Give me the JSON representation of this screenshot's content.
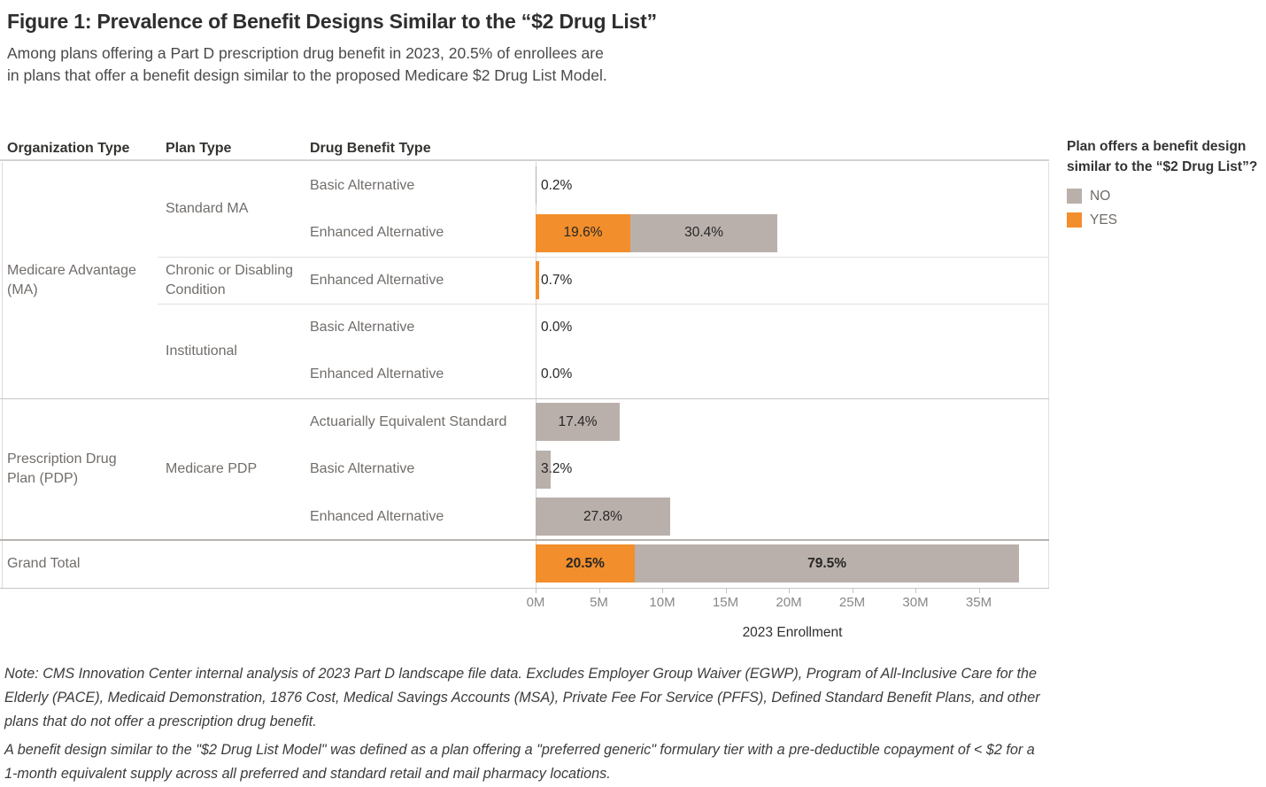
{
  "figure": {
    "title": "Figure 1: Prevalence of Benefit Designs Similar to the “$2 Drug List”",
    "subtitle": "Among plans offering a Part D prescription drug benefit in 2023, 20.5% of enrollees are\nin plans that offer a benefit design similar to the proposed Medicare $2 Drug List Model."
  },
  "table_headers": {
    "organization": "Organization Type",
    "plan": "Plan Type",
    "benefit": "Drug Benefit Type"
  },
  "legend": {
    "title": "Plan offers a benefit design\nsimilar to the “$2 Drug List”?",
    "items": [
      {
        "label": "NO",
        "color": "#bab0ab"
      },
      {
        "label": "YES",
        "color": "#f28e2b"
      }
    ]
  },
  "colors": {
    "yes": "#f28e2b",
    "no": "#bab0ab"
  },
  "chart_data": {
    "type": "bar",
    "orientation": "horizontal_stacked",
    "title": "Figure 1: Prevalence of Benefit Designs Similar to the “$2 Drug List”",
    "xlabel": "2023 Enrollment",
    "x_ticks": [
      "0M",
      "5M",
      "10M",
      "15M",
      "20M",
      "25M",
      "30M",
      "35M"
    ],
    "x_range_M": [
      0,
      40.5
    ],
    "total_enrollment_M": 38.2,
    "value_units": "percent of total 2023 Part D enrollment",
    "grid": false,
    "legend_position": "right",
    "series": [
      {
        "name": "YES",
        "color": "#f28e2b"
      },
      {
        "name": "NO",
        "color": "#bab0ab"
      }
    ],
    "rows": [
      {
        "organization": "Medicare Advantage (MA)",
        "plan": "Standard MA",
        "benefit": "Basic Alternative",
        "segments": [
          {
            "series": "NO",
            "pct": 0.2
          }
        ],
        "label": "0.2%"
      },
      {
        "organization": "Medicare Advantage (MA)",
        "plan": "Standard MA",
        "benefit": "Enhanced Alternative",
        "segments": [
          {
            "series": "YES",
            "pct": 19.6,
            "label": "19.6%"
          },
          {
            "series": "NO",
            "pct": 30.4,
            "label": "30.4%"
          }
        ]
      },
      {
        "organization": "Medicare Advantage (MA)",
        "plan": "Chronic or Disabling Condition",
        "benefit": "Enhanced Alternative",
        "segments": [
          {
            "series": "YES",
            "pct": 0.7
          }
        ],
        "label": "0.7%"
      },
      {
        "organization": "Medicare Advantage (MA)",
        "plan": "Institutional",
        "benefit": "Basic Alternative",
        "segments": [],
        "label": "0.0%"
      },
      {
        "organization": "Medicare Advantage (MA)",
        "plan": "Institutional",
        "benefit": "Enhanced Alternative",
        "segments": [],
        "label": "0.0%"
      },
      {
        "organization": "Prescription Drug Plan (PDP)",
        "plan": "Medicare PDP",
        "benefit": "Actuarially Equivalent Standard",
        "segments": [
          {
            "series": "NO",
            "pct": 17.4,
            "label": "17.4%"
          }
        ]
      },
      {
        "organization": "Prescription Drug Plan (PDP)",
        "plan": "Medicare PDP",
        "benefit": "Basic Alternative",
        "segments": [
          {
            "series": "NO",
            "pct": 3.2
          }
        ],
        "label": "3.2%"
      },
      {
        "organization": "Prescription Drug Plan (PDP)",
        "plan": "Medicare PDP",
        "benefit": "Enhanced Alternative",
        "segments": [
          {
            "series": "NO",
            "pct": 27.8,
            "label": "27.8%"
          }
        ]
      }
    ],
    "grand_total": {
      "label": "Grand Total",
      "segments": [
        {
          "series": "YES",
          "pct": 20.5,
          "label": "20.5%"
        },
        {
          "series": "NO",
          "pct": 79.5,
          "label": "79.5%"
        }
      ]
    }
  },
  "notes": [
    "Note: CMS Innovation Center internal analysis of 2023 Part D landscape file data. Excludes Employer Group Waiver (EGWP), Program of All-Inclusive Care for the Elderly (PACE), Medicaid Demonstration, 1876 Cost, Medical Savings Accounts (MSA), Private Fee For Service (PFFS), Defined Standard Benefit Plans, and other plans that do not offer a prescription drug benefit.",
    "A benefit design similar to the \"$2 Drug List Model\" was defined as a plan offering a \"preferred generic\" formulary tier with a pre-deductible copayment of < $2 for a 1-month equivalent supply across all preferred and standard retail and mail pharmacy locations."
  ]
}
